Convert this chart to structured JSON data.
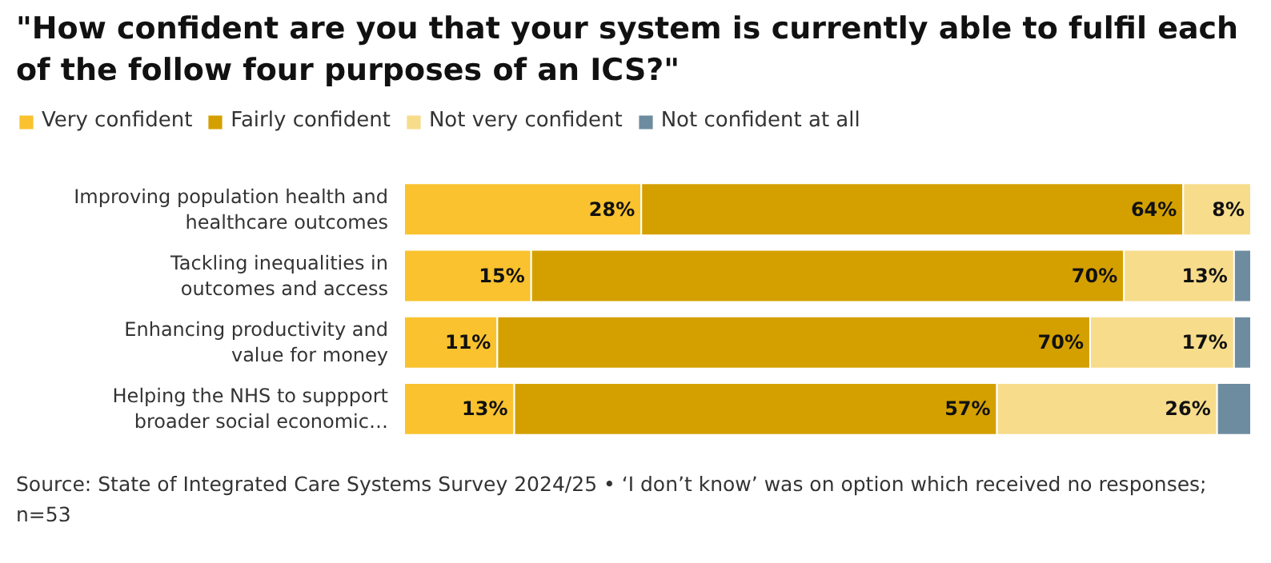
{
  "chart_data": {
    "type": "bar",
    "orientation": "horizontal",
    "stacked": true,
    "title": "\"How confident are you that your system is currently able to fulfil each of the follow four purposes of an ICS?\"",
    "categories": [
      "Improving population health and healthcare outcomes",
      "Tackling inequalities in outcomes and access",
      "Enhancing productivity and value for money",
      "Helping the NHS to suppport broader social economic…"
    ],
    "series": [
      {
        "name": "Very confident",
        "color": "#f9c22e",
        "values": [
          28,
          15,
          11,
          13
        ],
        "value_labels": [
          "28%",
          "15%",
          "11%",
          "13%"
        ]
      },
      {
        "name": "Fairly confident",
        "color": "#d4a000",
        "values": [
          64,
          70,
          70,
          57
        ],
        "value_labels": [
          "64%",
          "70%",
          "70%",
          "57%"
        ]
      },
      {
        "name": "Not very confident",
        "color": "#f7dc8b",
        "values": [
          8,
          13,
          17,
          26
        ],
        "value_labels": [
          "8%",
          "13%",
          "17%",
          "26%"
        ]
      },
      {
        "name": "Not confident at all",
        "color": "#6e8ca0",
        "values": [
          null,
          2,
          2,
          4
        ]
      }
    ],
    "xlim": [
      0,
      100
    ],
    "tick_labels": "y",
    "legend": "top",
    "grid": false,
    "annotations": [
      "Source: State of Integrated Care Systems Survey 2024/25 • ‘I don’t know’ was on option which received no responses; n=53"
    ]
  }
}
